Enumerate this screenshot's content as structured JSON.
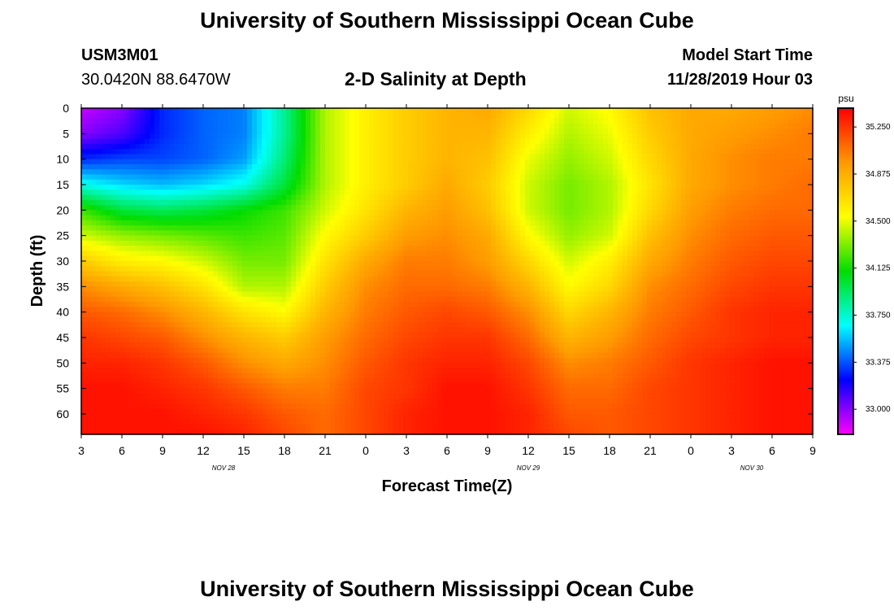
{
  "header": {
    "title": "University of Southern Mississippi Ocean Cube",
    "station_id": "USM3M01",
    "location": "30.0420N 88.6470W",
    "chart_title": "2-D Salinity at Depth",
    "model_label": "Model Start Time",
    "model_time": "11/28/2019 Hour 03"
  },
  "footer": {
    "title": "University of Southern Mississippi Ocean Cube"
  },
  "colors": {
    "scale": [
      "#ff00ff",
      "#0000ff",
      "#00ffff",
      "#00dd00",
      "#ffff00",
      "#ff9900",
      "#ff0000"
    ]
  },
  "chart_data": {
    "type": "heatmap",
    "title": "2-D Salinity at Depth",
    "xlabel": "Forecast Time(Z)",
    "ylabel": "Depth (ft)",
    "x_range_hours": [
      0,
      54
    ],
    "x_ticks": [
      "3",
      "6",
      "9",
      "12",
      "15",
      "18",
      "21",
      "0",
      "3",
      "6",
      "9",
      "12",
      "15",
      "18",
      "21",
      "0",
      "3",
      "6",
      "9"
    ],
    "date_labels": [
      {
        "label": "NOV  28",
        "hour": 10.5
      },
      {
        "label": "NOV  29",
        "hour": 33
      },
      {
        "label": "NOV  30",
        "hour": 49.5
      }
    ],
    "y_ticks": [
      0,
      5,
      10,
      15,
      20,
      25,
      30,
      35,
      40,
      45,
      50,
      55,
      60
    ],
    "ylim": [
      0,
      64
    ],
    "colorbar": {
      "unit": "psu",
      "min": 32.8,
      "max": 35.4,
      "tick_labels": [
        "35.250",
        "34.875",
        "34.500",
        "34.125",
        "33.750",
        "33.375",
        "33.000"
      ],
      "tick_values": [
        35.25,
        34.875,
        34.5,
        34.125,
        33.75,
        33.375,
        33.0
      ]
    },
    "depths": [
      0,
      5,
      10,
      15,
      20,
      25,
      30,
      35,
      40,
      45,
      50,
      55,
      60,
      64
    ],
    "hours": [
      0,
      3,
      6,
      9,
      12,
      15,
      18,
      21,
      24,
      27,
      30,
      33,
      36,
      39,
      42,
      45,
      48,
      51,
      54
    ],
    "values": [
      [
        32.9,
        33.0,
        33.3,
        33.4,
        33.45,
        33.85,
        34.4,
        34.6,
        34.75,
        34.85,
        34.9,
        34.7,
        34.45,
        34.55,
        34.8,
        34.9,
        34.9,
        34.95,
        35.0
      ],
      [
        33.0,
        33.1,
        33.3,
        33.4,
        33.45,
        33.85,
        34.4,
        34.6,
        34.75,
        34.85,
        34.85,
        34.6,
        34.4,
        34.5,
        34.75,
        34.9,
        34.95,
        35.0,
        35.05
      ],
      [
        33.3,
        33.35,
        33.35,
        33.4,
        33.5,
        33.9,
        34.4,
        34.6,
        34.75,
        34.85,
        34.8,
        34.5,
        34.35,
        34.45,
        34.7,
        34.9,
        35.0,
        35.05,
        35.05
      ],
      [
        33.7,
        33.6,
        33.55,
        33.6,
        33.7,
        34.0,
        34.4,
        34.6,
        34.75,
        34.9,
        34.75,
        34.45,
        34.3,
        34.4,
        34.65,
        34.9,
        35.0,
        35.05,
        35.1
      ],
      [
        34.2,
        34.0,
        33.95,
        34.0,
        34.1,
        34.2,
        34.45,
        34.65,
        34.85,
        34.95,
        34.8,
        34.45,
        34.3,
        34.4,
        34.7,
        34.95,
        35.05,
        35.1,
        35.1
      ],
      [
        34.45,
        34.35,
        34.3,
        34.25,
        34.2,
        34.25,
        34.55,
        34.75,
        34.95,
        35.0,
        34.9,
        34.55,
        34.35,
        34.45,
        34.8,
        35.0,
        35.1,
        35.15,
        35.15
      ],
      [
        34.75,
        34.6,
        34.55,
        34.45,
        34.3,
        34.3,
        34.65,
        34.9,
        35.05,
        35.05,
        34.95,
        34.7,
        34.45,
        34.6,
        34.9,
        35.05,
        35.15,
        35.2,
        35.2
      ],
      [
        35.0,
        34.9,
        34.8,
        34.65,
        34.4,
        34.4,
        34.75,
        35.0,
        35.1,
        35.1,
        35.05,
        34.85,
        34.55,
        34.7,
        35.0,
        35.1,
        35.2,
        35.25,
        35.25
      ],
      [
        35.15,
        35.1,
        35.0,
        34.85,
        34.65,
        34.55,
        34.85,
        35.05,
        35.15,
        35.2,
        35.15,
        35.0,
        34.7,
        34.85,
        35.05,
        35.15,
        35.25,
        35.3,
        35.3
      ],
      [
        35.25,
        35.2,
        35.15,
        35.0,
        34.85,
        34.75,
        34.95,
        35.1,
        35.2,
        35.25,
        35.25,
        35.1,
        34.85,
        34.95,
        35.1,
        35.2,
        35.25,
        35.3,
        35.3
      ],
      [
        35.3,
        35.3,
        35.25,
        35.15,
        35.0,
        34.9,
        35.0,
        35.15,
        35.25,
        35.3,
        35.3,
        35.2,
        35.0,
        35.05,
        35.15,
        35.25,
        35.3,
        35.35,
        35.35
      ],
      [
        35.35,
        35.35,
        35.3,
        35.25,
        35.15,
        35.05,
        35.05,
        35.2,
        35.25,
        35.35,
        35.35,
        35.25,
        35.1,
        35.1,
        35.2,
        35.25,
        35.3,
        35.35,
        35.35
      ],
      [
        35.35,
        35.35,
        35.35,
        35.3,
        35.25,
        35.15,
        35.1,
        35.2,
        35.3,
        35.35,
        35.35,
        35.3,
        35.15,
        35.15,
        35.2,
        35.25,
        35.3,
        35.35,
        35.35
      ],
      [
        35.35,
        35.35,
        35.35,
        35.35,
        35.3,
        35.2,
        35.1,
        35.2,
        35.3,
        35.35,
        35.35,
        35.3,
        35.2,
        35.15,
        35.2,
        35.25,
        35.3,
        35.35,
        35.35
      ]
    ]
  }
}
